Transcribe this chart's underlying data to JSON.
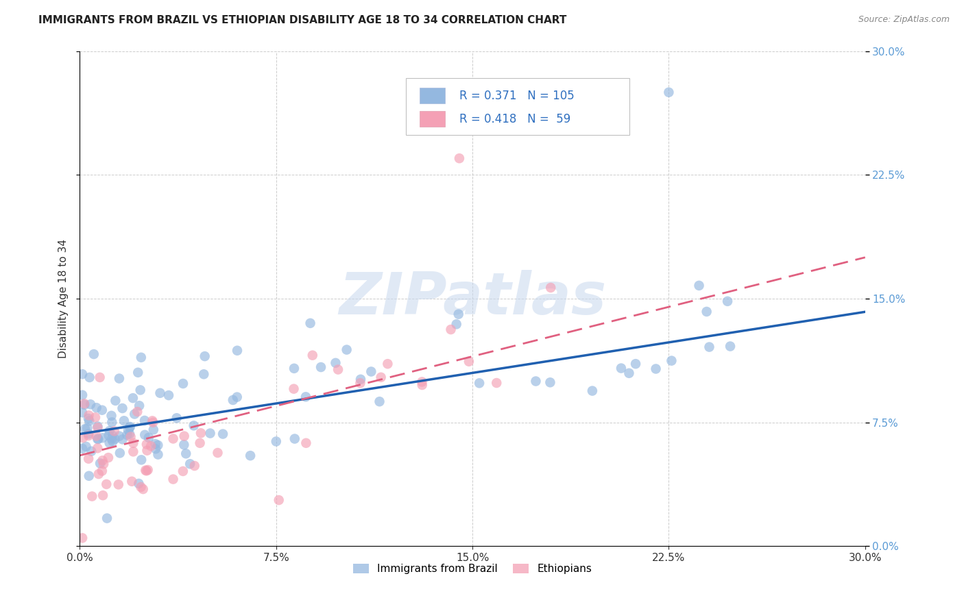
{
  "title": "IMMIGRANTS FROM BRAZIL VS ETHIOPIAN DISABILITY AGE 18 TO 34 CORRELATION CHART",
  "source": "Source: ZipAtlas.com",
  "ylabel": "Disability Age 18 to 34",
  "xlim": [
    0.0,
    0.3
  ],
  "ylim": [
    0.0,
    0.3
  ],
  "brazil_color": "#94b8e0",
  "ethiopian_color": "#f4a0b5",
  "brazil_line_color": "#2060b0",
  "ethiopian_line_color": "#e06080",
  "legend_text_color": "#3070c0",
  "right_tick_color": "#5b9bd5",
  "brazil_line_x": [
    0.0,
    0.3
  ],
  "brazil_line_y": [
    0.068,
    0.142
  ],
  "ethiopian_line_x": [
    0.0,
    0.3
  ],
  "ethiopian_line_y": [
    0.055,
    0.175
  ],
  "watermark": "ZIPatlas",
  "grid_color": "#cccccc",
  "background_color": "#ffffff",
  "scatter_seed": 12345
}
